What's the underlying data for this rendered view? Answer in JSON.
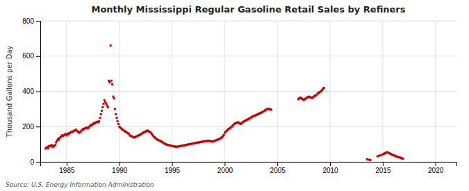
{
  "chart_data": {
    "type": "scatter",
    "title": "Monthly Mississippi Regular Gasoline Retail Sales by Refiners",
    "ylabel": "Thousand Gallons per Day",
    "annotation": "Source: U.S. Energy Information Administration",
    "color": "#cc0000",
    "marker": "square",
    "grid": true,
    "xlim": [
      1982.5,
      2022
    ],
    "ylim": [
      0,
      800
    ],
    "xticks": [
      1985,
      1990,
      1995,
      2000,
      2005,
      2010,
      2015,
      2020
    ],
    "yticks": [
      0,
      200,
      400,
      600,
      800
    ],
    "x": [
      1983.0,
      1983.08,
      1983.17,
      1983.25,
      1983.33,
      1983.42,
      1983.5,
      1983.58,
      1983.67,
      1983.75,
      1983.83,
      1983.92,
      1984.0,
      1984.08,
      1984.17,
      1984.25,
      1984.33,
      1984.42,
      1984.5,
      1984.58,
      1984.67,
      1984.75,
      1984.83,
      1984.92,
      1985.0,
      1985.08,
      1985.17,
      1985.25,
      1985.33,
      1985.42,
      1985.5,
      1985.58,
      1985.67,
      1985.75,
      1985.83,
      1985.92,
      1986.0,
      1986.08,
      1986.17,
      1986.25,
      1986.33,
      1986.42,
      1986.5,
      1986.58,
      1986.67,
      1986.75,
      1986.83,
      1986.92,
      1987.0,
      1987.08,
      1987.17,
      1987.25,
      1987.33,
      1987.42,
      1987.5,
      1987.58,
      1987.67,
      1987.75,
      1987.83,
      1987.92,
      1988.0,
      1988.08,
      1988.17,
      1988.25,
      1988.33,
      1988.42,
      1988.5,
      1988.58,
      1988.67,
      1988.75,
      1988.83,
      1988.92,
      1989.0,
      1989.08,
      1989.17,
      1989.25,
      1989.33,
      1989.42,
      1989.5,
      1989.58,
      1989.67,
      1989.75,
      1989.83,
      1989.92,
      1990.0,
      1990.08,
      1990.17,
      1990.25,
      1990.33,
      1990.42,
      1990.5,
      1990.58,
      1990.67,
      1990.75,
      1990.83,
      1990.92,
      1991.0,
      1991.08,
      1991.17,
      1991.25,
      1991.33,
      1991.42,
      1991.5,
      1991.58,
      1991.67,
      1991.75,
      1991.83,
      1991.92,
      1992.0,
      1992.08,
      1992.17,
      1992.25,
      1992.33,
      1992.42,
      1992.5,
      1992.58,
      1992.67,
      1992.75,
      1992.83,
      1992.92,
      1993.0,
      1993.08,
      1993.17,
      1993.25,
      1993.33,
      1993.42,
      1993.5,
      1993.58,
      1993.67,
      1993.75,
      1993.83,
      1993.92,
      1994.0,
      1994.08,
      1994.17,
      1994.25,
      1994.33,
      1994.42,
      1994.5,
      1994.58,
      1994.67,
      1994.75,
      1994.83,
      1994.92,
      1995.0,
      1995.08,
      1995.17,
      1995.25,
      1995.33,
      1995.42,
      1995.5,
      1995.58,
      1995.67,
      1995.75,
      1995.83,
      1995.92,
      1996.0,
      1996.08,
      1996.17,
      1996.25,
      1996.33,
      1996.42,
      1996.5,
      1996.58,
      1996.67,
      1996.75,
      1996.83,
      1996.92,
      1997.0,
      1997.08,
      1997.17,
      1997.25,
      1997.33,
      1997.42,
      1997.5,
      1997.58,
      1997.67,
      1997.75,
      1997.83,
      1997.92,
      1998.0,
      1998.08,
      1998.17,
      1998.25,
      1998.33,
      1998.42,
      1998.5,
      1998.58,
      1998.67,
      1998.75,
      1998.83,
      1998.92,
      1999.0,
      1999.08,
      1999.17,
      1999.25,
      1999.33,
      1999.42,
      1999.5,
      1999.58,
      1999.67,
      1999.75,
      1999.83,
      1999.92,
      2000.0,
      2000.08,
      2000.17,
      2000.25,
      2000.33,
      2000.42,
      2000.5,
      2000.58,
      2000.67,
      2000.75,
      2000.83,
      2000.92,
      2001.0,
      2001.08,
      2001.17,
      2001.25,
      2001.33,
      2001.42,
      2001.5,
      2001.58,
      2001.67,
      2001.75,
      2001.83,
      2001.92,
      2002.0,
      2002.08,
      2002.17,
      2002.25,
      2002.33,
      2002.42,
      2002.5,
      2002.58,
      2002.67,
      2002.75,
      2002.83,
      2002.92,
      2003.0,
      2003.08,
      2003.17,
      2003.25,
      2003.33,
      2003.42,
      2003.5,
      2003.58,
      2003.67,
      2003.75,
      2003.83,
      2003.92,
      2004.0,
      2004.08,
      2004.17,
      2004.25,
      2004.33,
      2004.42,
      2007.0,
      2007.08,
      2007.17,
      2007.25,
      2007.33,
      2007.42,
      2007.5,
      2007.58,
      2007.67,
      2007.75,
      2007.83,
      2007.92,
      2008.0,
      2008.08,
      2008.17,
      2008.25,
      2008.33,
      2008.42,
      2008.5,
      2008.58,
      2008.67,
      2008.75,
      2008.83,
      2008.92,
      2009.0,
      2009.08,
      2009.17,
      2009.25,
      2009.33,
      2009.42,
      2013.5,
      2013.67,
      2013.83,
      2014.5,
      2014.67,
      2014.83,
      2015.0,
      2015.08,
      2015.17,
      2015.25,
      2015.33,
      2015.42,
      2015.5,
      2015.58,
      2015.67,
      2015.75,
      2015.83,
      2015.92,
      2016.0,
      2016.08,
      2016.17,
      2016.25,
      2016.33,
      2016.42,
      2016.5,
      2016.58,
      2016.67,
      2016.75,
      2016.83,
      2016.92
    ],
    "values": [
      75,
      80,
      85,
      78,
      90,
      88,
      92,
      95,
      85,
      88,
      92,
      95,
      110,
      120,
      130,
      125,
      135,
      140,
      145,
      150,
      148,
      152,
      155,
      158,
      150,
      155,
      162,
      160,
      165,
      170,
      168,
      172,
      175,
      178,
      180,
      182,
      175,
      170,
      165,
      168,
      172,
      178,
      182,
      188,
      185,
      190,
      192,
      195,
      190,
      195,
      200,
      205,
      210,
      208,
      215,
      220,
      218,
      222,
      225,
      228,
      225,
      230,
      250,
      270,
      290,
      310,
      330,
      350,
      340,
      330,
      320,
      310,
      460,
      450,
      660,
      460,
      440,
      370,
      360,
      300,
      270,
      250,
      230,
      215,
      200,
      195,
      190,
      185,
      182,
      178,
      175,
      170,
      168,
      165,
      162,
      158,
      150,
      148,
      145,
      142,
      140,
      138,
      140,
      143,
      145,
      148,
      150,
      152,
      155,
      158,
      162,
      165,
      168,
      170,
      172,
      175,
      178,
      175,
      172,
      168,
      165,
      158,
      150,
      145,
      140,
      135,
      130,
      128,
      125,
      122,
      120,
      118,
      115,
      112,
      108,
      105,
      102,
      100,
      98,
      96,
      95,
      94,
      93,
      92,
      90,
      89,
      88,
      87,
      86,
      85,
      86,
      87,
      88,
      89,
      90,
      91,
      92,
      93,
      94,
      95,
      96,
      97,
      98,
      99,
      100,
      101,
      102,
      103,
      104,
      105,
      106,
      107,
      108,
      109,
      110,
      111,
      112,
      113,
      114,
      115,
      115,
      116,
      117,
      118,
      119,
      120,
      119,
      118,
      117,
      116,
      115,
      116,
      118,
      120,
      122,
      124,
      126,
      128,
      130,
      133,
      136,
      140,
      145,
      152,
      165,
      170,
      175,
      180,
      185,
      188,
      192,
      195,
      200,
      205,
      210,
      215,
      218,
      220,
      222,
      225,
      222,
      218,
      215,
      218,
      222,
      226,
      230,
      232,
      235,
      238,
      240,
      243,
      245,
      248,
      252,
      255,
      258,
      260,
      262,
      264,
      266,
      268,
      270,
      273,
      276,
      278,
      280,
      283,
      286,
      288,
      292,
      295,
      298,
      300,
      302,
      300,
      298,
      295,
      355,
      360,
      365,
      362,
      358,
      355,
      352,
      355,
      358,
      362,
      365,
      368,
      370,
      368,
      365,
      362,
      365,
      368,
      372,
      375,
      378,
      382,
      388,
      392,
      395,
      398,
      402,
      408,
      415,
      420,
      15,
      12,
      10,
      32,
      35,
      38,
      42,
      45,
      48,
      50,
      52,
      55,
      52,
      50,
      48,
      45,
      42,
      40,
      38,
      36,
      34,
      32,
      30,
      28,
      26,
      25,
      24,
      22,
      20,
      18
    ]
  }
}
